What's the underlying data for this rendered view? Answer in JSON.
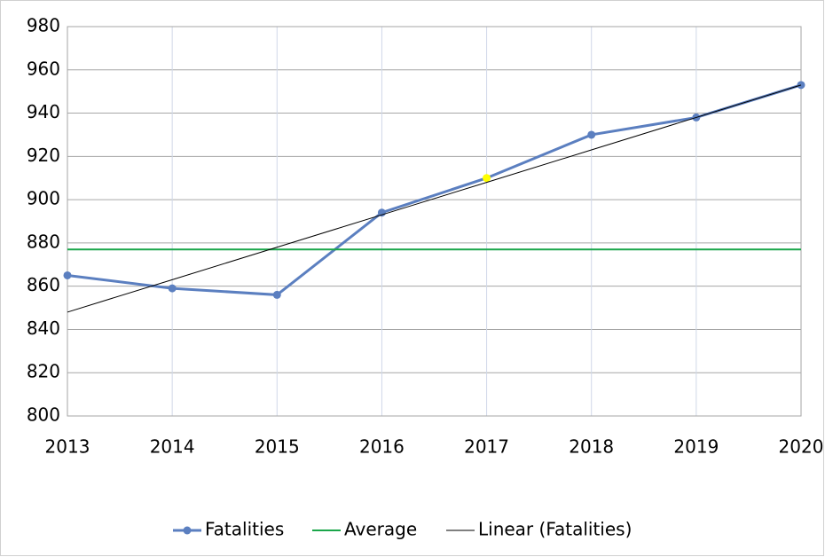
{
  "chart_data": {
    "type": "line",
    "x": [
      2013,
      2014,
      2015,
      2016,
      2017,
      2018,
      2019,
      2020
    ],
    "series": [
      {
        "name": "Fatalities",
        "color": "#5b7fc0",
        "marker": true,
        "values": [
          865,
          859,
          856,
          894,
          910,
          930,
          938,
          953
        ],
        "point_colors": [
          "#5b7fc0",
          "#5b7fc0",
          "#5b7fc0",
          "#5b7fc0",
          "#ffff00",
          "#5b7fc0",
          "#5b7fc0",
          "#5b7fc0"
        ]
      },
      {
        "name": "Average",
        "color": "#1aa64a",
        "marker": false,
        "values": [
          877,
          877,
          877,
          877,
          877,
          877,
          877,
          877
        ]
      },
      {
        "name": "Linear (Fatalities)",
        "color": "#000000",
        "marker": false,
        "values": [
          848,
          863,
          878,
          893,
          908,
          923,
          938,
          953
        ]
      }
    ],
    "xlim": [
      2013,
      2020
    ],
    "xticks": [
      2013,
      2014,
      2015,
      2016,
      2017,
      2018,
      2019,
      2020
    ],
    "ylim": [
      800,
      980
    ],
    "yticks": [
      800,
      820,
      840,
      860,
      880,
      900,
      920,
      940,
      960,
      980
    ],
    "grid": true,
    "legend": "bottom"
  }
}
